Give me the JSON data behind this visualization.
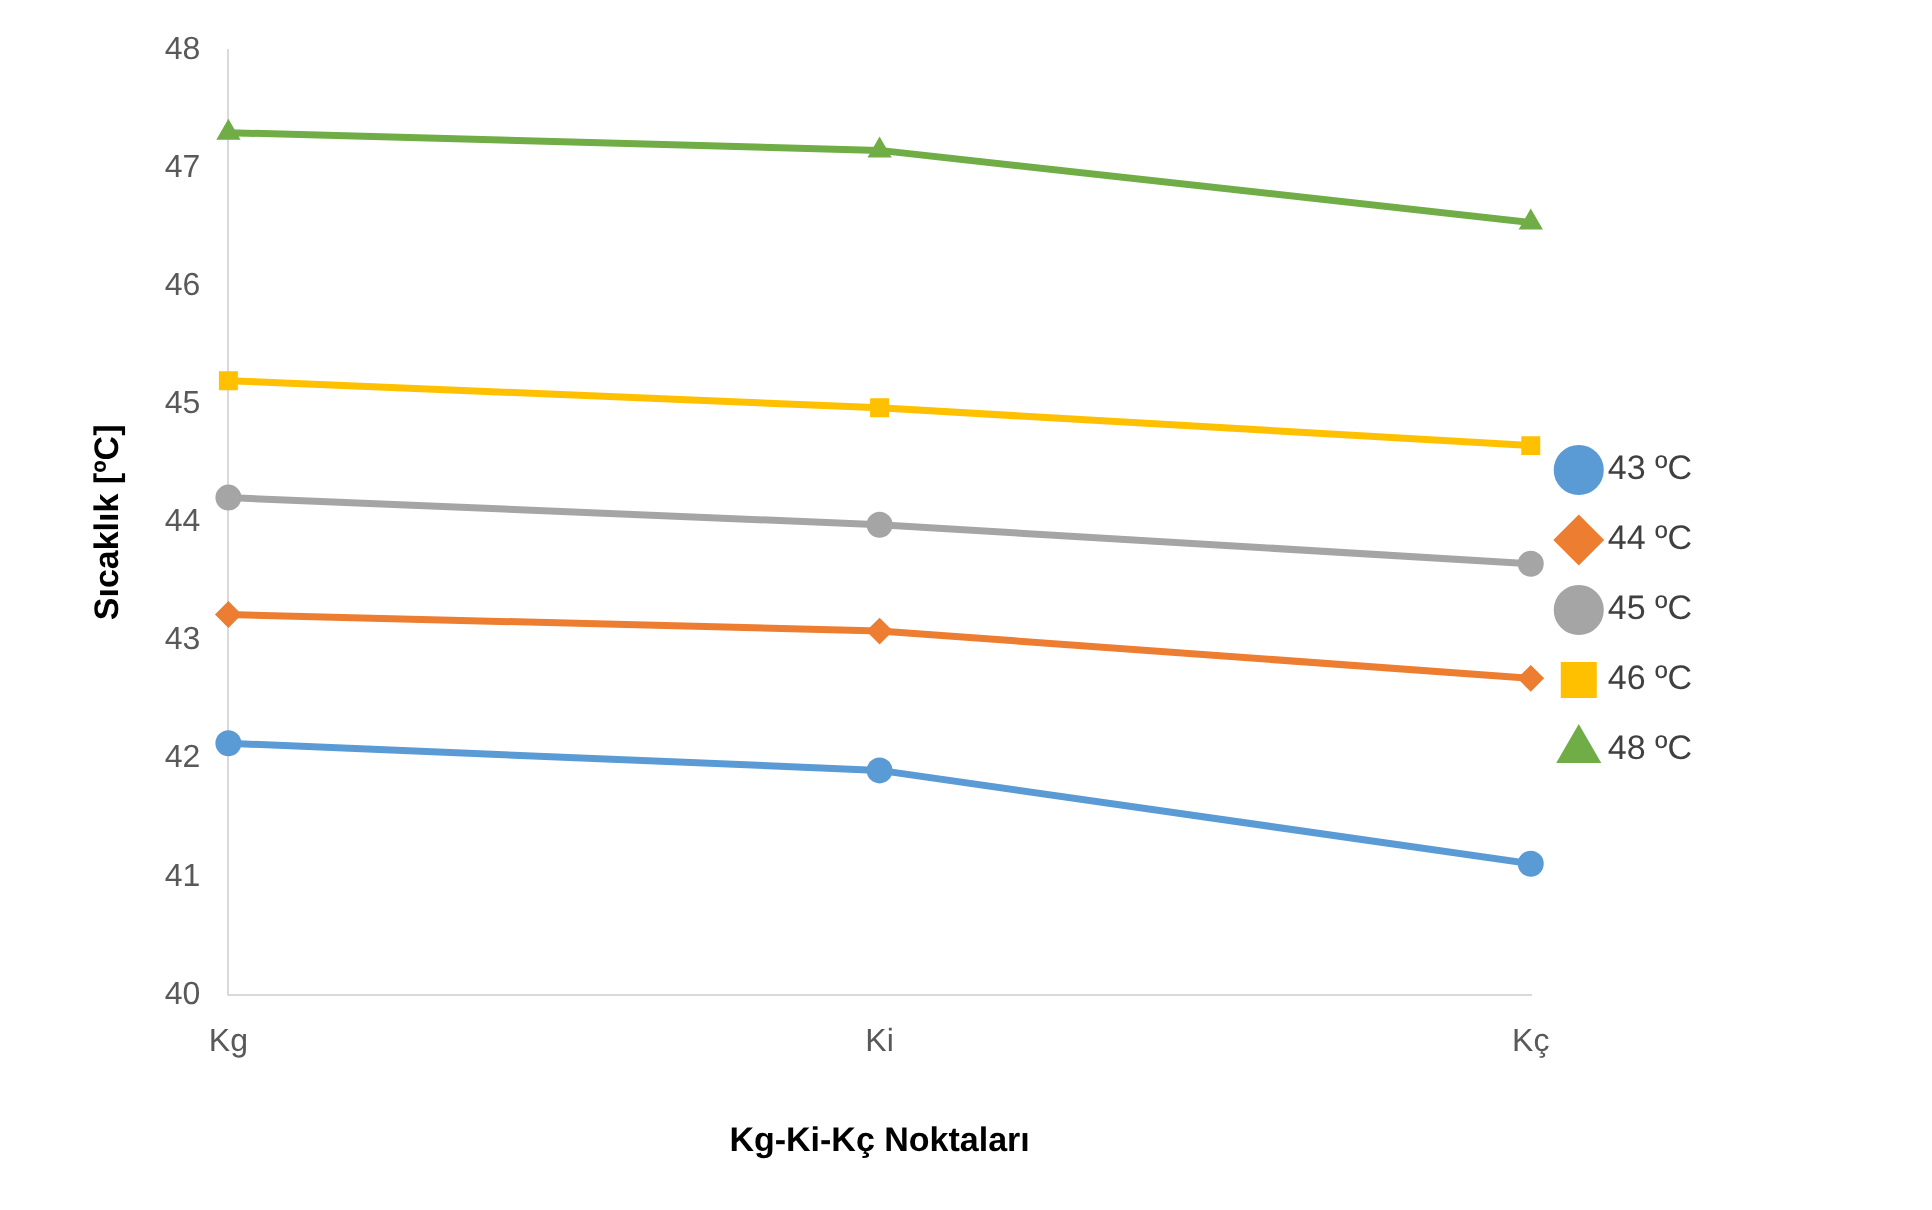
{
  "chart_data": {
    "type": "line",
    "xlabel": "Kg-Ki-Kç Noktaları",
    "ylabel": "Sıcaklık [ºC]",
    "categories": [
      "Kg",
      "Ki",
      "Kç"
    ],
    "series": [
      {
        "name": "43 ºC",
        "color": "#5b9bd5",
        "marker": "circle",
        "values": [
          42.13,
          41.9,
          41.11
        ]
      },
      {
        "name": "44 ºC",
        "color": "#ed7d31",
        "marker": "diamond",
        "values": [
          43.22,
          43.08,
          42.68
        ]
      },
      {
        "name": "45 ºC",
        "color": "#a5a5a5",
        "marker": "circle",
        "values": [
          44.21,
          43.98,
          43.65
        ]
      },
      {
        "name": "46 ºC",
        "color": "#ffc000",
        "marker": "square",
        "values": [
          45.2,
          44.97,
          44.65
        ]
      },
      {
        "name": "48 ºC",
        "color": "#70ad47",
        "marker": "triangle",
        "values": [
          47.3,
          47.15,
          46.54
        ]
      }
    ],
    "ylim": [
      40,
      48
    ],
    "yticks": [
      40,
      41,
      42,
      43,
      44,
      45,
      46,
      47,
      48
    ],
    "grid": false,
    "legend": "right",
    "line_style": "solid"
  }
}
